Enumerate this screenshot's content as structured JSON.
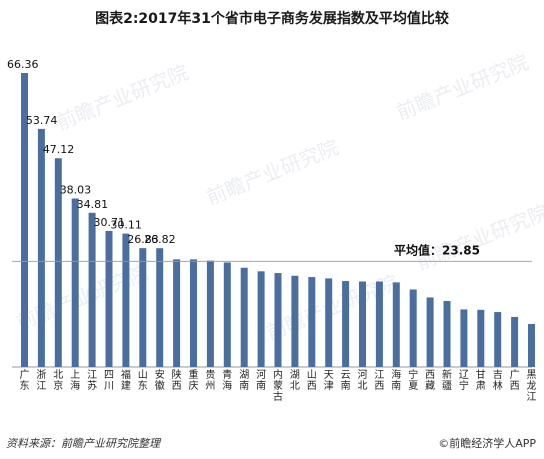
{
  "title": "图表2:2017年31个省市电子商务发展指数及平均值比较",
  "source": "资料来源：前瞻产业研究院整理",
  "brand": "©前瞻经济学人APP",
  "watermark": "前瞻产业研究院",
  "chart_data": {
    "type": "bar",
    "categories": [
      "广东",
      "浙江",
      "北京",
      "上海",
      "江苏",
      "四川",
      "福建",
      "山东",
      "安徽",
      "陕西",
      "重庆",
      "贵州",
      "青海",
      "湖南",
      "河南",
      "内蒙古",
      "湖北",
      "山西",
      "天津",
      "云南",
      "河北",
      "江西",
      "海南",
      "宁夏",
      "西藏",
      "新疆",
      "辽宁",
      "甘肃",
      "吉林",
      "广西",
      "黑龙江"
    ],
    "values": [
      66.36,
      53.74,
      47.12,
      38.03,
      34.81,
      30.71,
      30.11,
      26.83,
      26.82,
      24.3,
      24.3,
      24.0,
      23.6,
      22.4,
      21.6,
      21.2,
      20.6,
      20.3,
      20.0,
      19.4,
      19.3,
      19.3,
      19.1,
      17.5,
      15.7,
      14.9,
      13.0,
      12.9,
      12.4,
      11.3,
      9.7
    ],
    "data_labels": [
      "66.36",
      "53.74",
      "47.12",
      "38.03",
      "34.81",
      "30.71",
      "30.11",
      "26.83",
      "26.82",
      "",
      "",
      "",
      "",
      "",
      "",
      "",
      "",
      "",
      "",
      "",
      "",
      "",
      "",
      "",
      "",
      "",
      "",
      "",
      "",
      "",
      ""
    ],
    "average": 23.85,
    "average_label": "平均值：23.85",
    "color": "#4a6f9e",
    "ylim": [
      0,
      70
    ],
    "xlabel": "",
    "ylabel": "",
    "grid": false
  }
}
